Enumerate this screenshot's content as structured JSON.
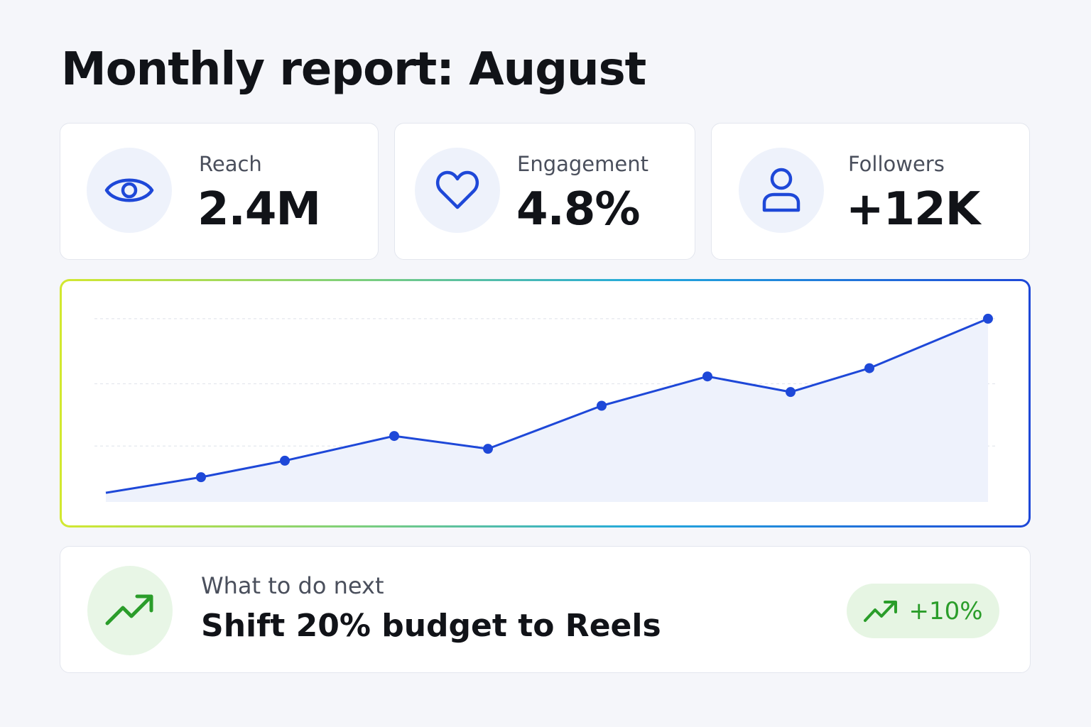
{
  "page": {
    "title": "Monthly report: August"
  },
  "colors": {
    "accent_blue": "#1e48d8",
    "icon_bg_blue": "#eef2fb",
    "positive_green": "#2a9d2a",
    "positive_bg": "#e6f5e3"
  },
  "kpis": [
    {
      "label": "Reach",
      "value": "2.4M",
      "icon": "eye-icon"
    },
    {
      "label": "Engagement",
      "value": "4.8%",
      "icon": "heart-icon"
    },
    {
      "label": "Followers",
      "value": "+12K",
      "icon": "user-icon"
    }
  ],
  "chart_data": {
    "type": "area",
    "title": "",
    "xlabel": "",
    "ylabel": "",
    "x": [
      1,
      2,
      3,
      4,
      5,
      6,
      7,
      8,
      9,
      10
    ],
    "series": [
      {
        "values": [
          10,
          27,
          45,
          72,
          58,
          105,
          137,
          120,
          146,
          200
        ]
      }
    ],
    "ylim": [
      0,
      210
    ],
    "grid": true,
    "markers": true,
    "legend": "none",
    "color": "#1e48d8"
  },
  "next_step": {
    "label": "What to do next",
    "text": "Shift 20% budget to Reels",
    "icon": "trend-up-icon",
    "badge": {
      "value": "+10%",
      "icon": "trend-up-icon"
    }
  }
}
